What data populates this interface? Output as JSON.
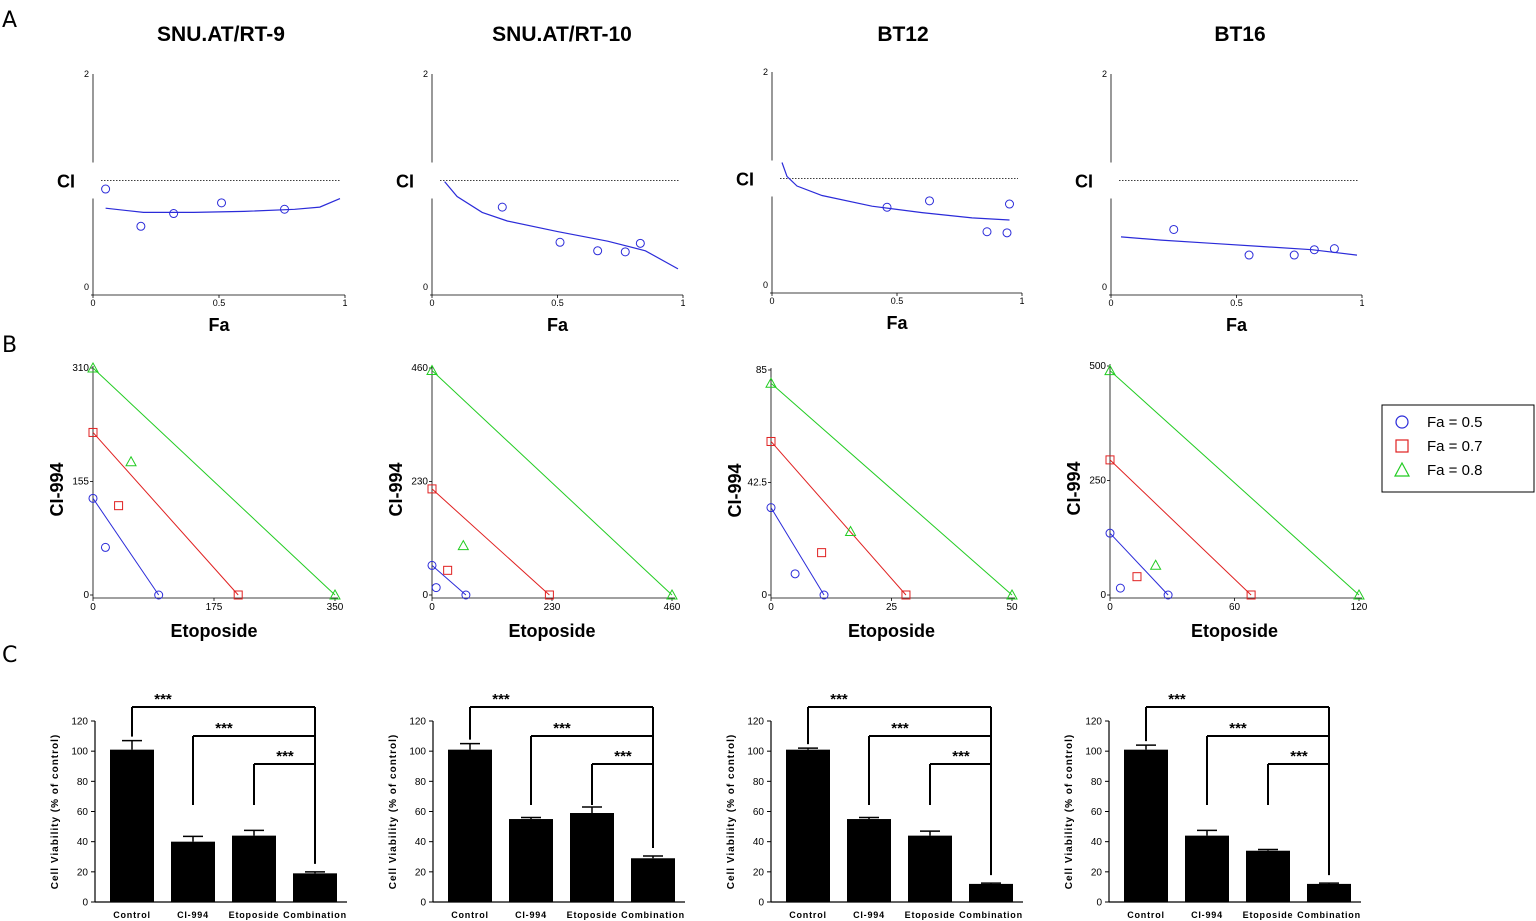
{
  "panel_labels": [
    "A",
    "B",
    "C"
  ],
  "legend": {
    "items": [
      {
        "label": "Fa = 0.5",
        "color": "#2b2bd9",
        "shape": "circle"
      },
      {
        "label": "Fa = 0.7",
        "color": "#e02020",
        "shape": "square"
      },
      {
        "label": "Fa = 0.8",
        "color": "#22cc22",
        "shape": "triangle"
      }
    ]
  },
  "chart_data": [
    {
      "type": "scatter",
      "panel": "A",
      "title": "SNU.AT/RT-9",
      "xlabel": "Fa",
      "ylabel": "CI",
      "xlim": [
        0,
        1
      ],
      "ylim": [
        0,
        2
      ],
      "xticks": [
        "0",
        "0.5",
        "1"
      ],
      "yticks": [
        "0",
        "2"
      ],
      "reference_ci": 1,
      "points": [
        [
          0.05,
          0.92
        ],
        [
          0.19,
          0.57
        ],
        [
          0.32,
          0.69
        ],
        [
          0.51,
          0.79
        ],
        [
          0.76,
          0.73
        ]
      ],
      "curve": [
        [
          0.05,
          0.74
        ],
        [
          0.2,
          0.7
        ],
        [
          0.4,
          0.7
        ],
        [
          0.6,
          0.71
        ],
        [
          0.8,
          0.73
        ],
        [
          0.9,
          0.75
        ],
        [
          0.98,
          0.83
        ]
      ]
    },
    {
      "type": "scatter",
      "panel": "A",
      "title": "SNU.AT/RT-10",
      "xlabel": "Fa",
      "ylabel": "CI",
      "xlim": [
        0,
        1
      ],
      "ylim": [
        0,
        2
      ],
      "xticks": [
        "0",
        "0.5",
        "1"
      ],
      "yticks": [
        "0",
        "2"
      ],
      "reference_ci": 1,
      "points": [
        [
          0.28,
          0.75
        ],
        [
          0.51,
          0.42
        ],
        [
          0.66,
          0.34
        ],
        [
          0.77,
          0.33
        ],
        [
          0.83,
          0.41
        ]
      ],
      "curve": [
        [
          0.05,
          0.99
        ],
        [
          0.1,
          0.85
        ],
        [
          0.2,
          0.7
        ],
        [
          0.3,
          0.62
        ],
        [
          0.5,
          0.52
        ],
        [
          0.7,
          0.43
        ],
        [
          0.85,
          0.34
        ],
        [
          0.98,
          0.17
        ]
      ]
    },
    {
      "type": "scatter",
      "panel": "A",
      "title": "BT12",
      "xlabel": "Fa",
      "ylabel": "CI",
      "xlim": [
        0,
        1
      ],
      "ylim": [
        0,
        2
      ],
      "xticks": [
        "0",
        "0.5",
        "1"
      ],
      "yticks": [
        "0",
        "2"
      ],
      "reference_ci": 1,
      "points": [
        [
          0.46,
          0.73
        ],
        [
          0.63,
          0.79
        ],
        [
          0.86,
          0.5
        ],
        [
          0.94,
          0.49
        ],
        [
          0.95,
          0.76
        ]
      ],
      "curve": [
        [
          0.04,
          1.15
        ],
        [
          0.06,
          1.02
        ],
        [
          0.1,
          0.93
        ],
        [
          0.2,
          0.84
        ],
        [
          0.4,
          0.74
        ],
        [
          0.6,
          0.68
        ],
        [
          0.8,
          0.63
        ],
        [
          0.95,
          0.61
        ]
      ]
    },
    {
      "type": "scatter",
      "panel": "A",
      "title": "BT16",
      "xlabel": "Fa",
      "ylabel": "CI",
      "xlim": [
        0,
        1
      ],
      "ylim": [
        0,
        2
      ],
      "xticks": [
        "0",
        "0.5",
        "1"
      ],
      "yticks": [
        "0",
        "2"
      ],
      "reference_ci": 1,
      "points": [
        [
          0.25,
          0.54
        ],
        [
          0.55,
          0.3
        ],
        [
          0.73,
          0.3
        ],
        [
          0.81,
          0.35
        ],
        [
          0.89,
          0.36
        ]
      ],
      "curve": [
        [
          0.04,
          0.47
        ],
        [
          0.2,
          0.44
        ],
        [
          0.4,
          0.41
        ],
        [
          0.6,
          0.38
        ],
        [
          0.8,
          0.35
        ],
        [
          0.98,
          0.3
        ]
      ]
    },
    {
      "type": "isobologram",
      "panel": "B",
      "xlabel": "Etoposide",
      "ylabel": "CI-994",
      "xlim": [
        0,
        350
      ],
      "ylim": [
        0,
        310
      ],
      "xticks": [
        "0",
        "175",
        "350"
      ],
      "yticks": [
        "0",
        "155",
        "310"
      ],
      "lines": [
        {
          "fa": 0.5,
          "x": 95,
          "y": 132
        },
        {
          "fa": 0.7,
          "x": 210,
          "y": 222
        },
        {
          "fa": 0.8,
          "x": 350,
          "y": 310
        }
      ],
      "points": [
        {
          "fa": 0.5,
          "x": 18,
          "y": 65
        },
        {
          "fa": 0.7,
          "x": 37,
          "y": 122
        },
        {
          "fa": 0.8,
          "x": 55,
          "y": 182
        }
      ]
    },
    {
      "type": "isobologram",
      "panel": "B",
      "xlabel": "Etoposide",
      "ylabel": "CI-994",
      "xlim": [
        0,
        460
      ],
      "ylim": [
        0,
        460
      ],
      "xticks": [
        "0",
        "230",
        "460"
      ],
      "yticks": [
        "0",
        "230",
        "460"
      ],
      "lines": [
        {
          "fa": 0.5,
          "x": 65,
          "y": 60
        },
        {
          "fa": 0.7,
          "x": 225,
          "y": 215
        },
        {
          "fa": 0.8,
          "x": 460,
          "y": 455
        }
      ],
      "points": [
        {
          "fa": 0.5,
          "x": 8,
          "y": 15
        },
        {
          "fa": 0.7,
          "x": 30,
          "y": 50
        },
        {
          "fa": 0.8,
          "x": 60,
          "y": 100
        }
      ]
    },
    {
      "type": "isobologram",
      "panel": "B",
      "xlabel": "Etoposide",
      "ylabel": "CI-994",
      "xlim": [
        0,
        50
      ],
      "ylim": [
        0,
        85
      ],
      "xticks": [
        "0",
        "25",
        "50"
      ],
      "yticks": [
        "0",
        "42.5",
        "85"
      ],
      "lines": [
        {
          "fa": 0.5,
          "x": 11,
          "y": 33
        },
        {
          "fa": 0.7,
          "x": 28,
          "y": 58
        },
        {
          "fa": 0.8,
          "x": 50,
          "y": 80
        }
      ],
      "points": [
        {
          "fa": 0.5,
          "x": 5,
          "y": 8
        },
        {
          "fa": 0.7,
          "x": 10.5,
          "y": 16
        },
        {
          "fa": 0.8,
          "x": 16.5,
          "y": 24
        }
      ]
    },
    {
      "type": "isobologram",
      "panel": "B",
      "xlabel": "Etoposide",
      "ylabel": "CI-994",
      "xlim": [
        0,
        120
      ],
      "ylim": [
        0,
        500
      ],
      "xticks": [
        "0",
        "60",
        "120"
      ],
      "yticks": [
        "0",
        "250",
        "500"
      ],
      "lines": [
        {
          "fa": 0.5,
          "x": 28,
          "y": 135
        },
        {
          "fa": 0.7,
          "x": 68,
          "y": 295
        },
        {
          "fa": 0.8,
          "x": 120,
          "y": 490
        }
      ],
      "points": [
        {
          "fa": 0.5,
          "x": 5,
          "y": 15
        },
        {
          "fa": 0.7,
          "x": 13,
          "y": 40
        },
        {
          "fa": 0.8,
          "x": 22,
          "y": 65
        }
      ]
    },
    {
      "type": "bar",
      "panel": "C",
      "ylabel": "Cell Viability (% of control)",
      "ylim": [
        0,
        120
      ],
      "yticks": [
        "0",
        "20",
        "40",
        "60",
        "80",
        "100",
        "120"
      ],
      "categories": [
        "Control",
        "CI-994",
        "Etoposide",
        "Combination"
      ],
      "values": [
        101,
        40,
        44,
        19
      ],
      "errors": [
        6,
        3.5,
        3.5,
        1
      ],
      "significance": [
        "***",
        "***",
        "***"
      ]
    },
    {
      "type": "bar",
      "panel": "C",
      "ylabel": "Cell Viability (% of control)",
      "ylim": [
        0,
        120
      ],
      "yticks": [
        "0",
        "20",
        "40",
        "60",
        "80",
        "100",
        "120"
      ],
      "categories": [
        "Control",
        "CI-994",
        "Etoposide",
        "Combination"
      ],
      "values": [
        101,
        55,
        59,
        29
      ],
      "errors": [
        4,
        1,
        4,
        1.5
      ],
      "significance": [
        "***",
        "***",
        "***"
      ]
    },
    {
      "type": "bar",
      "panel": "C",
      "ylabel": "Cell Viability (% of control)",
      "ylim": [
        0,
        120
      ],
      "yticks": [
        "0",
        "20",
        "40",
        "60",
        "80",
        "100",
        "120"
      ],
      "categories": [
        "Control",
        "CI-994",
        "Etoposide",
        "Combination"
      ],
      "values": [
        101,
        55,
        44,
        12
      ],
      "errors": [
        1,
        1,
        3,
        0.5
      ],
      "significance": [
        "***",
        "***",
        "***"
      ]
    },
    {
      "type": "bar",
      "panel": "C",
      "ylabel": "Cell Viability (% of control)",
      "ylim": [
        0,
        120
      ],
      "yticks": [
        "0",
        "20",
        "40",
        "60",
        "80",
        "100",
        "120"
      ],
      "categories": [
        "Control",
        "CI-994",
        "Etoposide",
        "Combination"
      ],
      "values": [
        101,
        44,
        34,
        12
      ],
      "errors": [
        3,
        3.5,
        0.8,
        0.5
      ],
      "significance": [
        "***",
        "***",
        "***"
      ]
    }
  ]
}
